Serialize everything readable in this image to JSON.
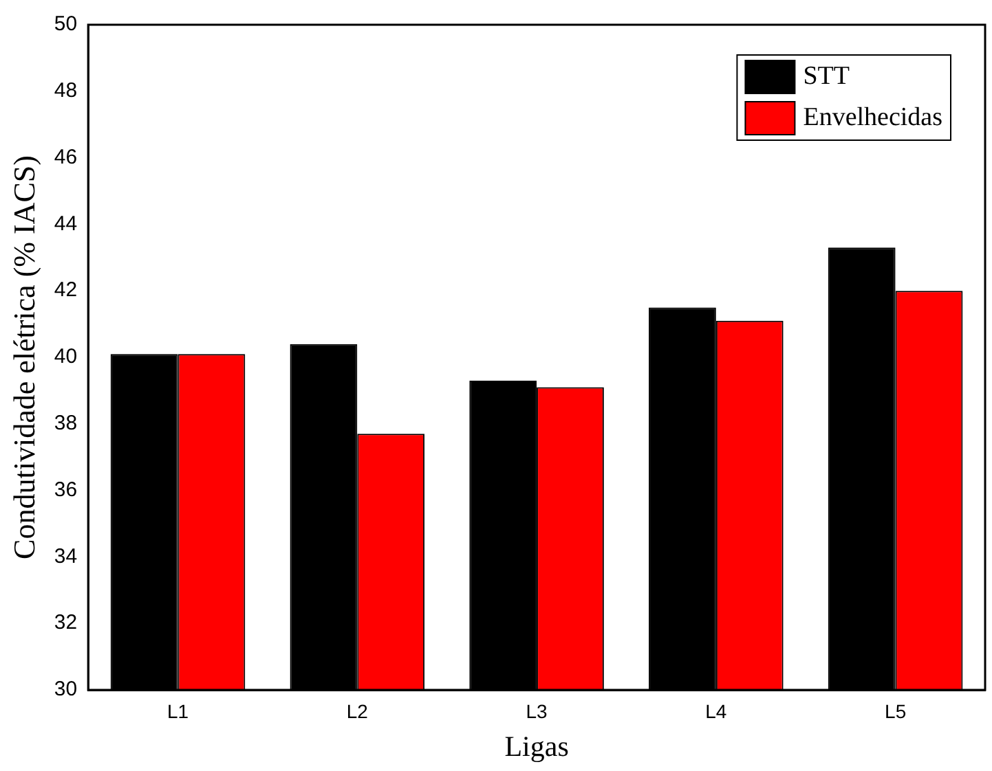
{
  "chart_data": {
    "type": "bar",
    "xlabel": "Ligas",
    "ylabel": "Condutividade elétrica (% IACS)",
    "categories": [
      "L1",
      "L2",
      "L3",
      "L4",
      "L5"
    ],
    "series": [
      {
        "name": "STT",
        "color": "#000000",
        "values": [
          40.1,
          40.4,
          39.3,
          41.5,
          43.3
        ]
      },
      {
        "name": "Envelhecidas",
        "color": "#ff0000",
        "values": [
          40.1,
          37.7,
          39.1,
          41.1,
          42.0
        ]
      }
    ],
    "ylim": [
      30,
      50
    ],
    "yticks": [
      30,
      32,
      34,
      36,
      38,
      40,
      42,
      44,
      46,
      48,
      50
    ],
    "grid": false,
    "legend": "top right"
  }
}
